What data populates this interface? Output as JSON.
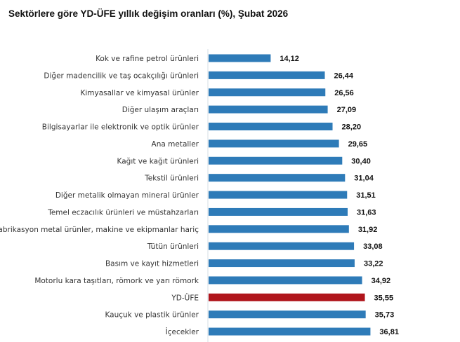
{
  "chart_data": {
    "type": "bar",
    "orientation": "horizontal",
    "title": "Sektörlere göre YD-ÜFE yıllık değişim oranları (%), Şubat 2026",
    "categories": [
      "Kok ve rafine petrol ürünleri",
      "Diğer madencilik ve taş ocakçılığı ürünleri",
      "Kimyasallar ve kimyasal ürünler",
      "Diğer ulaşım araçları",
      "Bilgisayarlar ile elektronik ve optik ürünler",
      "Ana metaller",
      "Kağıt ve kağıt ürünleri",
      "Tekstil ürünleri",
      "Diğer metalik olmayan mineral ürünler",
      "Temel eczacılık ürünleri ve müstahzarları",
      "Fabrikasyon metal ürünler, makine ve ekipmanlar hariç",
      "Tütün ürünleri",
      "Basım ve kayıt hizmetleri",
      "Motorlu kara taşıtları, römork ve yarı römork",
      "YD-ÜFE",
      "Kauçuk ve plastik ürünler",
      "İçecekler"
    ],
    "values": [
      14.12,
      26.44,
      26.56,
      27.09,
      28.2,
      29.65,
      30.4,
      31.04,
      31.51,
      31.63,
      31.92,
      33.08,
      33.22,
      34.92,
      35.55,
      35.73,
      36.81
    ],
    "value_labels": [
      "14,12",
      "26,44",
      "26,56",
      "27,09",
      "28,20",
      "29,65",
      "30,40",
      "31,04",
      "31,51",
      "31,63",
      "31,92",
      "33,08",
      "33,22",
      "34,92",
      "35,55",
      "35,73",
      "36,81"
    ],
    "highlight_category": "YD-ÜFE",
    "colors": {
      "bar": "#2e7bb8",
      "highlight": "#b0151c",
      "axis": "#d5dde6"
    },
    "xlim": [
      0,
      40
    ],
    "grid": false,
    "legend": "none"
  }
}
